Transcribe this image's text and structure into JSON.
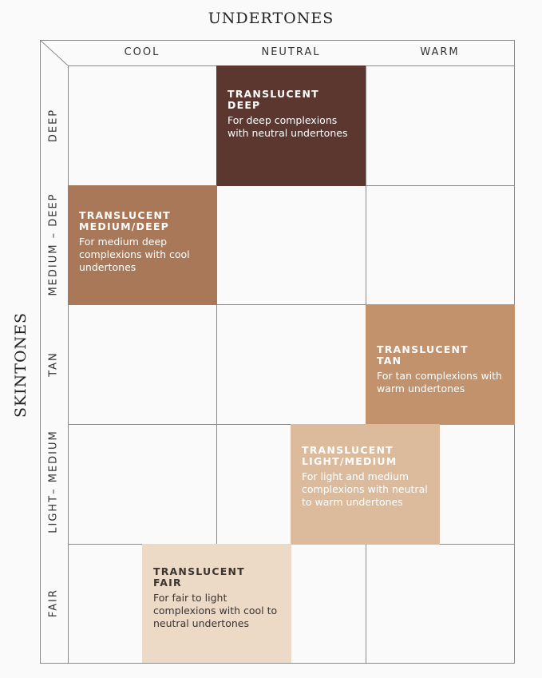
{
  "title": "UNDERTONES",
  "y_title": "SKINTONES",
  "columns": [
    "COOL",
    "NEUTRAL",
    "WARM"
  ],
  "rows": [
    "DEEP",
    "MEDIUM – DEEP",
    "TAN",
    "LIGHT– MEDIUM",
    "FAIR"
  ],
  "shades": [
    {
      "name_line1": "TRANSLUCENT",
      "name_line2": "DEEP",
      "description": "For deep complexions with neutral undertones",
      "color": "#5c3730",
      "text_color": "#ffffff"
    },
    {
      "name_line1": "TRANSLUCENT",
      "name_line2": "MEDIUM/DEEP",
      "description": "For medium deep complexions with cool undertones",
      "color": "#a87858",
      "text_color": "#ffffff"
    },
    {
      "name_line1": "TRANSLUCENT",
      "name_line2": "TAN",
      "description": "For tan complexions with warm undertones",
      "color": "#c1926c",
      "text_color": "#ffffff"
    },
    {
      "name_line1": "TRANSLUCENT",
      "name_line2": "LIGHT/MEDIUM",
      "description": "For light and medium complexions with neutral to warm undertones",
      "color": "#dcbb9c",
      "text_color": "#ffffff"
    },
    {
      "name_line1": "TRANSLUCENT",
      "name_line2": "FAIR",
      "description": "For fair to light complexions with cool to neutral undertones",
      "color": "#ecdac6",
      "text_color": "#3a3430"
    }
  ]
}
